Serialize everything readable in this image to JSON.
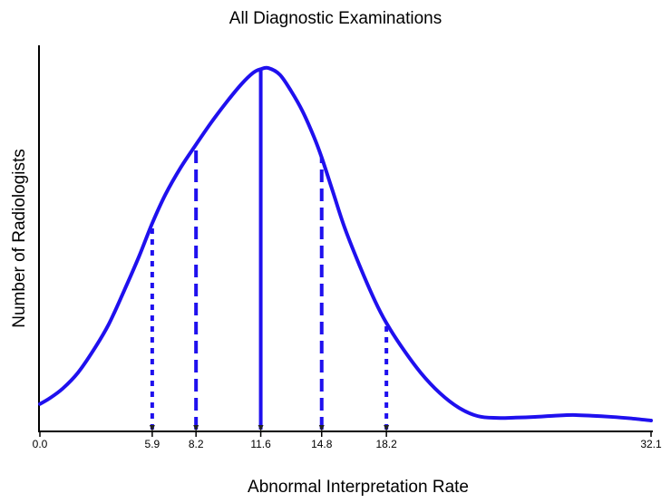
{
  "chart_data": {
    "type": "line",
    "title": "All Diagnostic Examinations",
    "xlabel": "Abnormal Interpretation Rate",
    "ylabel": "Number of Radiologists",
    "xlim": [
      0.0,
      32.1
    ],
    "ylim": [
      0,
      1
    ],
    "x_ticks": [
      "0.0",
      "5.9",
      "8.2",
      "11.6",
      "14.8",
      "18.2",
      "32.1"
    ],
    "curve": {
      "x": [
        0.0,
        0.5,
        1.2,
        2.0,
        2.8,
        3.6,
        4.4,
        5.2,
        5.9,
        6.6,
        7.4,
        8.2,
        9.0,
        9.8,
        10.6,
        11.2,
        11.6,
        12.0,
        12.6,
        13.2,
        13.8,
        14.4,
        14.8,
        15.4,
        16.0,
        16.8,
        17.6,
        18.2,
        19.0,
        20.0,
        21.0,
        22.0,
        23.0,
        24.0,
        25.0,
        26.0,
        27.0,
        28.0,
        29.0,
        30.0,
        31.0,
        32.1
      ],
      "y": [
        0.045,
        0.06,
        0.087,
        0.13,
        0.19,
        0.26,
        0.35,
        0.445,
        0.536,
        0.615,
        0.688,
        0.75,
        0.81,
        0.865,
        0.915,
        0.945,
        0.955,
        0.958,
        0.94,
        0.895,
        0.84,
        0.77,
        0.715,
        0.62,
        0.525,
        0.42,
        0.325,
        0.265,
        0.2,
        0.13,
        0.075,
        0.035,
        0.012,
        0.007,
        0.008,
        0.01,
        0.013,
        0.015,
        0.013,
        0.01,
        0.006,
        0.0
      ]
    },
    "markers": [
      {
        "x": 5.9,
        "label": "5.9",
        "style": "dotted"
      },
      {
        "x": 8.2,
        "label": "8.2",
        "style": "dashed"
      },
      {
        "x": 11.6,
        "label": "11.6",
        "style": "solid"
      },
      {
        "x": 14.8,
        "label": "14.8",
        "style": "dashed"
      },
      {
        "x": 18.2,
        "label": "18.2",
        "style": "dotted"
      }
    ],
    "color": "#1f10ee",
    "grid": false
  }
}
